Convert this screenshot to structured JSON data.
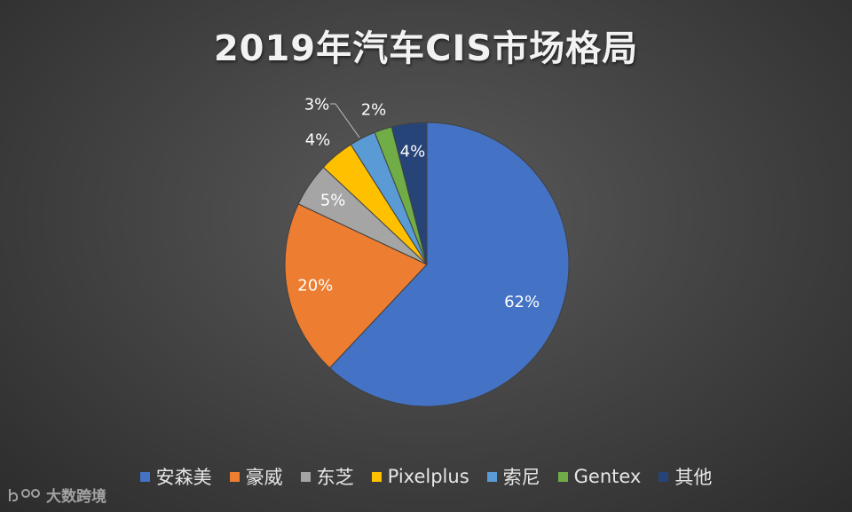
{
  "chart_data": {
    "type": "pie",
    "title": "2019年汽车CIS市场格局",
    "categories": [
      "安森美",
      "豪威",
      "东芝",
      "Pixelplus",
      "索尼",
      "Gentex",
      "其他"
    ],
    "values": [
      62,
      20,
      5,
      4,
      3,
      2,
      4
    ],
    "data_labels": [
      "62%",
      "20%",
      "5%",
      "4%",
      "3%",
      "2%",
      "4%"
    ],
    "colors": [
      "#4472c4",
      "#ed7d31",
      "#a5a5a5",
      "#ffc000",
      "#5b9bd5",
      "#70ad47",
      "#264478"
    ],
    "legend_position": "bottom",
    "start_angle_deg": 0,
    "direction": "clockwise"
  },
  "watermark": {
    "text": "大数跨境"
  }
}
